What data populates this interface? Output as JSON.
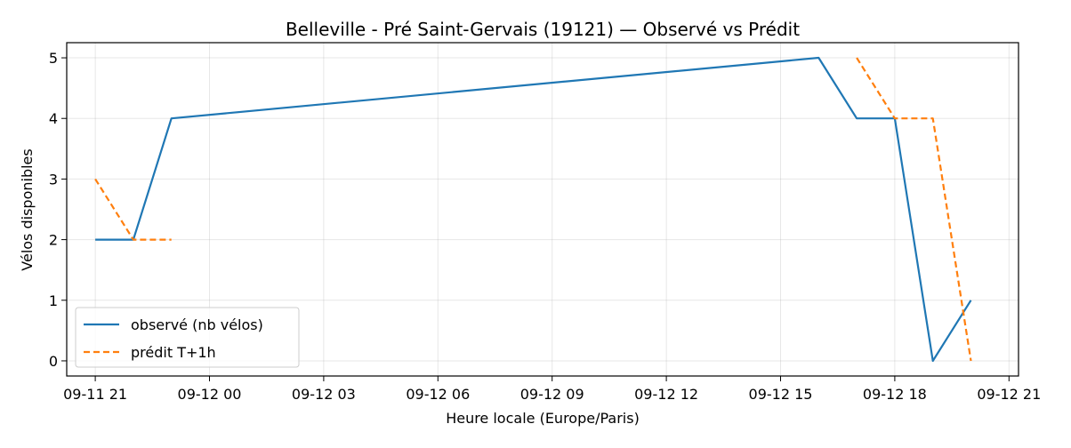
{
  "chart_data": {
    "type": "line",
    "title": "Belleville -  Pré Saint-Gervais (19121) — Observé vs Prédit",
    "xlabel": "Heure locale (Europe/Paris)",
    "ylabel": "Vélos disponibles",
    "grid": true,
    "legend_position": "lower-left",
    "x_ticks": [
      {
        "x": "2025-09-11T21:00",
        "label": "09-11 21"
      },
      {
        "x": "2025-09-12T00:00",
        "label": "09-12 00"
      },
      {
        "x": "2025-09-12T03:00",
        "label": "09-12 03"
      },
      {
        "x": "2025-09-12T06:00",
        "label": "09-12 06"
      },
      {
        "x": "2025-09-12T09:00",
        "label": "09-12 09"
      },
      {
        "x": "2025-09-12T12:00",
        "label": "09-12 12"
      },
      {
        "x": "2025-09-12T15:00",
        "label": "09-12 15"
      },
      {
        "x": "2025-09-12T18:00",
        "label": "09-12 18"
      },
      {
        "x": "2025-09-12T21:00",
        "label": "09-12 21"
      }
    ],
    "y_ticks": [
      0,
      1,
      2,
      3,
      4,
      5
    ],
    "xlim": [
      "2025-09-11T20:15",
      "2025-09-12T21:15"
    ],
    "ylim": [
      -0.25,
      5.25
    ],
    "series": [
      {
        "name": "observé (nb vélos)",
        "color": "#1f77b4",
        "dash": "solid",
        "segments": [
          [
            {
              "x": "2025-09-11T21:00",
              "y": 2
            },
            {
              "x": "2025-09-11T22:00",
              "y": 2
            },
            {
              "x": "2025-09-11T23:00",
              "y": 4
            },
            {
              "x": "2025-09-12T16:00",
              "y": 5
            },
            {
              "x": "2025-09-12T17:00",
              "y": 4
            },
            {
              "x": "2025-09-12T18:00",
              "y": 4
            },
            {
              "x": "2025-09-12T19:00",
              "y": 0
            },
            {
              "x": "2025-09-12T20:00",
              "y": 1
            }
          ]
        ]
      },
      {
        "name": "prédit T+1h",
        "color": "#ff7f0e",
        "dash": "dashed",
        "segments": [
          [
            {
              "x": "2025-09-11T21:00",
              "y": 3
            },
            {
              "x": "2025-09-11T22:00",
              "y": 2
            },
            {
              "x": "2025-09-11T23:00",
              "y": 2
            }
          ],
          [
            {
              "x": "2025-09-12T17:00",
              "y": 5
            },
            {
              "x": "2025-09-12T18:00",
              "y": 4
            },
            {
              "x": "2025-09-12T19:00",
              "y": 4
            },
            {
              "x": "2025-09-12T20:00",
              "y": 0
            }
          ]
        ]
      }
    ]
  }
}
